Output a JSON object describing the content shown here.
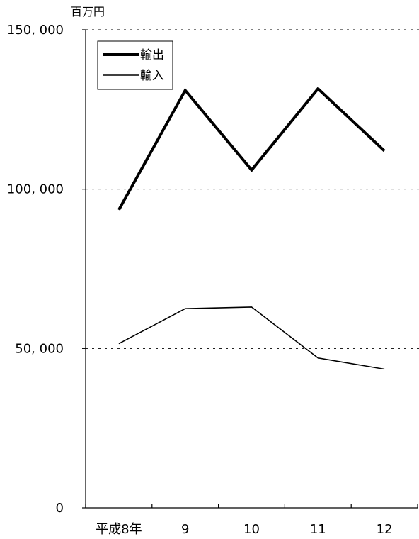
{
  "chart_data": {
    "type": "line",
    "categories": [
      "平成8年",
      "9",
      "10",
      "11",
      "12"
    ],
    "series": [
      {
        "name": "輸出",
        "values": [
          93500,
          131000,
          106000,
          131500,
          112000
        ],
        "color": "#000000",
        "weight": "thick"
      },
      {
        "name": "輸入",
        "values": [
          51500,
          62500,
          63000,
          47000,
          43500
        ],
        "color": "#000000",
        "weight": "thin"
      }
    ],
    "unit": "百万円",
    "ylim": [
      0,
      150000
    ],
    "yticks": [
      {
        "value": 0,
        "label": "0"
      },
      {
        "value": 50000,
        "label": "50, 000"
      },
      {
        "value": 100000,
        "label": "100, 000"
      },
      {
        "value": 150000,
        "label": "150, 000"
      }
    ],
    "grid": "dotted-horizontal",
    "legend_position": "top-left"
  }
}
